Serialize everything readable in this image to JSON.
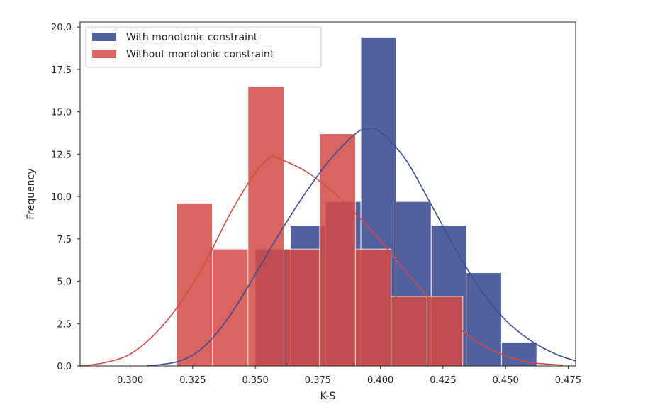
{
  "chart_data": {
    "type": "histogram",
    "xlabel": "K-S",
    "ylabel": "Frequency",
    "xlim": [
      0.28,
      0.478
    ],
    "ylim": [
      0,
      20.3
    ],
    "x_ticks": [
      "0.300",
      "0.325",
      "0.350",
      "0.375",
      "0.400",
      "0.425",
      "0.450",
      "0.475"
    ],
    "x_tick_values": [
      0.3,
      0.325,
      0.35,
      0.375,
      0.4,
      0.425,
      0.45,
      0.475
    ],
    "y_ticks": [
      "0.0",
      "2.5",
      "5.0",
      "7.5",
      "10.0",
      "12.5",
      "15.0",
      "17.5",
      "20.0"
    ],
    "y_tick_values": [
      0,
      2.5,
      5.0,
      7.5,
      10.0,
      12.5,
      15.0,
      17.5,
      20.0
    ],
    "grid": false,
    "legend_position": "top-left",
    "series": [
      {
        "name": "With monotonic constraint",
        "color": "#3b4a93",
        "alpha": 0.88,
        "bin_width": 0.01405,
        "bins": [
          {
            "start": 0.35,
            "value": 6.9
          },
          {
            "start": 0.364,
            "value": 8.3
          },
          {
            "start": 0.3781,
            "value": 9.7
          },
          {
            "start": 0.3922,
            "value": 19.4
          },
          {
            "start": 0.4062,
            "value": 9.7
          },
          {
            "start": 0.4203,
            "value": 8.3
          },
          {
            "start": 0.4343,
            "value": 5.5
          },
          {
            "start": 0.4484,
            "value": 1.4
          }
        ],
        "kde": [
          {
            "x": 0.307,
            "y": 0.0
          },
          {
            "x": 0.32,
            "y": 0.3
          },
          {
            "x": 0.33,
            "y": 1.2
          },
          {
            "x": 0.34,
            "y": 3.0
          },
          {
            "x": 0.35,
            "y": 5.4
          },
          {
            "x": 0.36,
            "y": 7.9
          },
          {
            "x": 0.37,
            "y": 10.2
          },
          {
            "x": 0.38,
            "y": 12.2
          },
          {
            "x": 0.39,
            "y": 13.7
          },
          {
            "x": 0.395,
            "y": 14.0
          },
          {
            "x": 0.4,
            "y": 13.8
          },
          {
            "x": 0.41,
            "y": 12.2
          },
          {
            "x": 0.42,
            "y": 9.6
          },
          {
            "x": 0.43,
            "y": 6.9
          },
          {
            "x": 0.44,
            "y": 4.5
          },
          {
            "x": 0.45,
            "y": 2.7
          },
          {
            "x": 0.46,
            "y": 1.5
          },
          {
            "x": 0.47,
            "y": 0.7
          },
          {
            "x": 0.478,
            "y": 0.3
          }
        ]
      },
      {
        "name": "Without monotonic constraint",
        "color": "#d24a44",
        "alpha": 0.85,
        "bin_width": 0.0143,
        "bins": [
          {
            "start": 0.3185,
            "value": 9.6
          },
          {
            "start": 0.3328,
            "value": 6.9
          },
          {
            "start": 0.3471,
            "value": 16.5
          },
          {
            "start": 0.3614,
            "value": 6.9
          },
          {
            "start": 0.3757,
            "value": 13.7
          },
          {
            "start": 0.39,
            "value": 6.9
          },
          {
            "start": 0.4043,
            "value": 4.1
          },
          {
            "start": 0.4186,
            "value": 4.1
          }
        ],
        "kde": [
          {
            "x": 0.28,
            "y": 0.0
          },
          {
            "x": 0.29,
            "y": 0.2
          },
          {
            "x": 0.3,
            "y": 0.7
          },
          {
            "x": 0.31,
            "y": 1.9
          },
          {
            "x": 0.32,
            "y": 3.7
          },
          {
            "x": 0.33,
            "y": 6.1
          },
          {
            "x": 0.34,
            "y": 9.0
          },
          {
            "x": 0.35,
            "y": 11.4
          },
          {
            "x": 0.356,
            "y": 12.3
          },
          {
            "x": 0.36,
            "y": 12.2
          },
          {
            "x": 0.37,
            "y": 11.5
          },
          {
            "x": 0.38,
            "y": 10.4
          },
          {
            "x": 0.39,
            "y": 9.0
          },
          {
            "x": 0.4,
            "y": 7.4
          },
          {
            "x": 0.41,
            "y": 5.6
          },
          {
            "x": 0.42,
            "y": 3.9
          },
          {
            "x": 0.43,
            "y": 2.4
          },
          {
            "x": 0.44,
            "y": 1.3
          },
          {
            "x": 0.45,
            "y": 0.6
          },
          {
            "x": 0.46,
            "y": 0.2
          },
          {
            "x": 0.473,
            "y": 0.05
          }
        ]
      }
    ]
  }
}
